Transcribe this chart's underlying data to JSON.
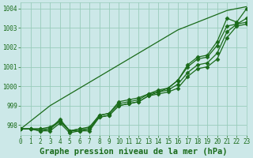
{
  "xlabel": "Graphe pression niveau de la mer (hPa)",
  "background_color": "#cce8e8",
  "grid_color": "#99ccbb",
  "line_color": "#1a6b1a",
  "xlim": [
    0,
    23
  ],
  "ylim": [
    997.5,
    1004.3
  ],
  "yticks": [
    998,
    999,
    1000,
    1001,
    1002,
    1003,
    1004
  ],
  "xticks": [
    0,
    1,
    2,
    3,
    4,
    5,
    6,
    7,
    8,
    9,
    10,
    11,
    12,
    13,
    14,
    15,
    16,
    17,
    18,
    19,
    20,
    21,
    22,
    23
  ],
  "series_with_markers": [
    [
      997.8,
      997.8,
      997.7,
      997.7,
      998.1,
      997.6,
      997.7,
      997.8,
      998.4,
      998.5,
      999.0,
      999.1,
      999.2,
      999.5,
      999.6,
      999.7,
      999.9,
      1000.5,
      1000.9,
      1001.0,
      1001.4,
      1002.5,
      1003.1,
      1003.2
    ],
    [
      997.8,
      997.8,
      997.7,
      997.8,
      998.2,
      997.7,
      997.8,
      997.9,
      998.5,
      998.6,
      999.2,
      999.3,
      999.4,
      999.6,
      999.7,
      999.8,
      1000.1,
      1000.7,
      1001.1,
      1001.2,
      1001.7,
      1002.8,
      1003.2,
      1003.3
    ],
    [
      997.8,
      997.8,
      997.8,
      997.8,
      998.3,
      997.7,
      997.8,
      997.8,
      998.5,
      998.6,
      999.1,
      999.2,
      999.3,
      999.6,
      999.8,
      999.9,
      1000.3,
      1001.0,
      1001.4,
      1001.5,
      1002.1,
      1003.1,
      1003.2,
      1003.5
    ],
    [
      997.8,
      997.8,
      997.8,
      997.9,
      998.2,
      997.7,
      997.7,
      997.7,
      998.4,
      998.5,
      999.0,
      999.1,
      999.2,
      999.5,
      999.7,
      999.9,
      1000.3,
      1001.1,
      1001.5,
      1001.6,
      1002.3,
      1003.5,
      1003.3,
      1004.0
    ]
  ],
  "series_no_markers": [
    [
      997.8,
      998.2,
      998.6,
      999.0,
      999.3,
      999.6,
      999.9,
      1000.2,
      1000.5,
      1000.8,
      1001.1,
      1001.4,
      1001.7,
      1002.0,
      1002.3,
      1002.6,
      1002.9,
      1003.1,
      1003.3,
      1003.5,
      1003.7,
      1003.9,
      1004.0,
      1004.1
    ]
  ],
  "marker": "D",
  "marker_size": 2.5,
  "line_width": 0.9,
  "font_family": "monospace",
  "label_fontsize": 7.5,
  "tick_fontsize": 5.5
}
